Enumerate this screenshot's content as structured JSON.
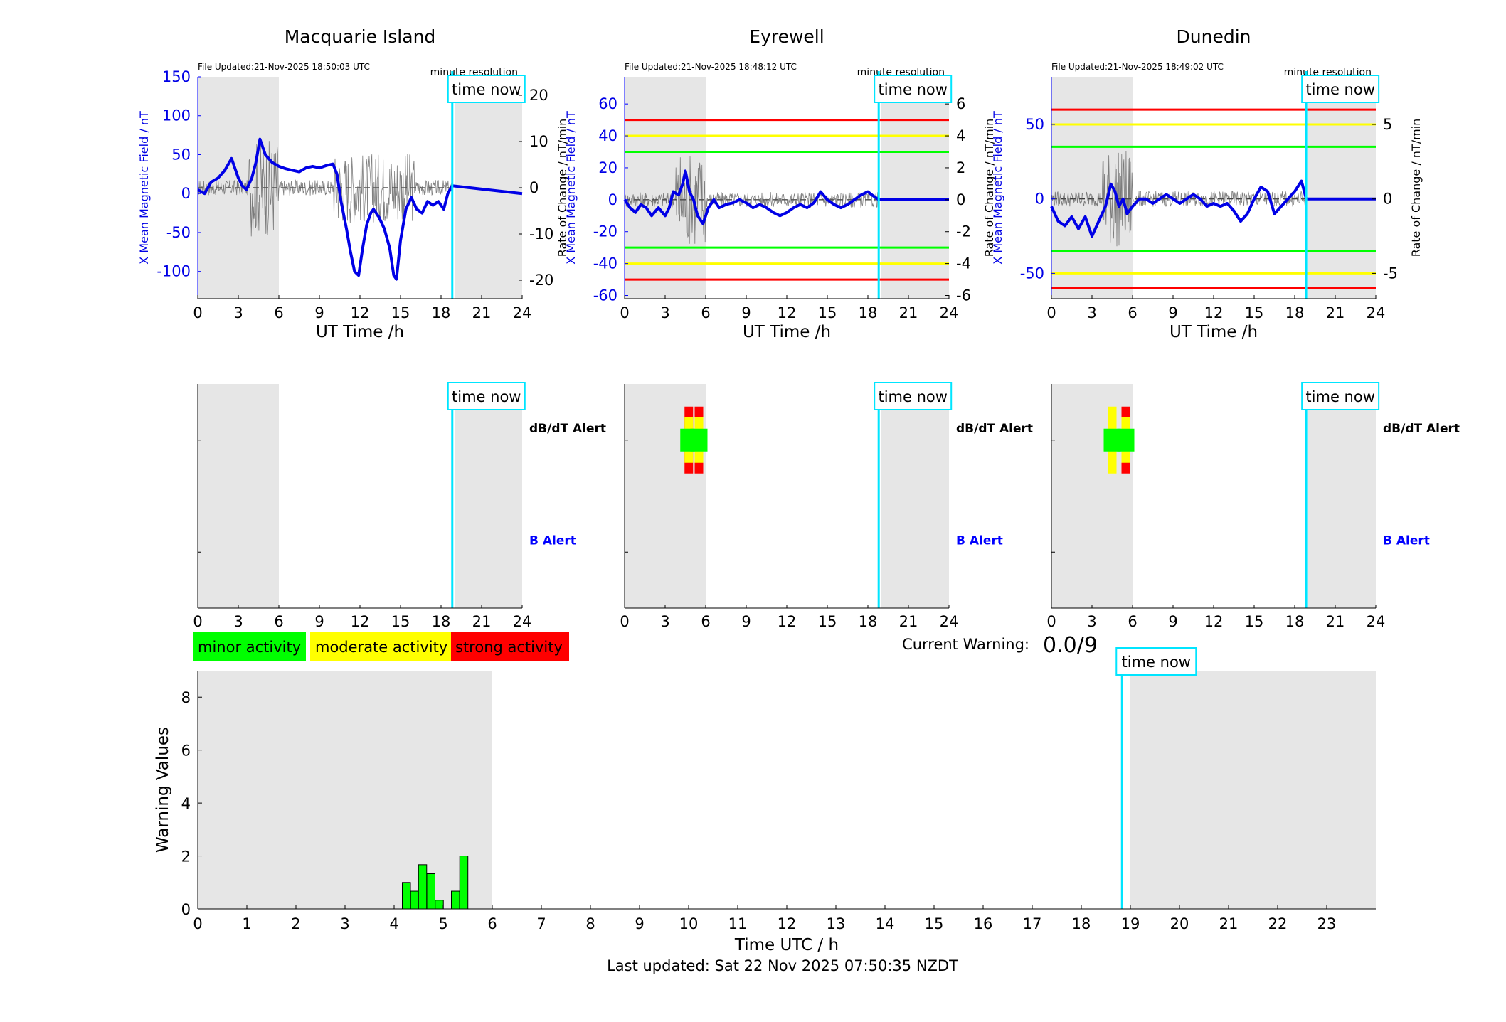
{
  "colors": {
    "night_shade": "#e6e6e6",
    "x_field": "#0000e6",
    "rate": "#555555",
    "time_now": "#00e5ff",
    "minor": "#00ff00",
    "moderate": "#ffff00",
    "strong": "#ff0000",
    "b_alert_label": "#0000ff"
  },
  "time_now_label": "time now",
  "minute_resolution": "minute resolution",
  "stations": [
    {
      "name": "Macquarie Island",
      "file_updated": "File Updated:21-Nov-2025 18:50:03 UTC",
      "xlabel": "UT Time /h",
      "ylabel_left": "X Mean Magnetic Field / nT",
      "ylabel_right": "Rate of Change / nT/min",
      "x_ticks": [
        "0",
        "3",
        "6",
        "9",
        "12",
        "15",
        "18",
        "21",
        "24"
      ],
      "ylim_left": [
        -135,
        150
      ],
      "yticks_left": [
        "150",
        "100",
        "50",
        "0",
        "-50",
        "-100"
      ],
      "ylim_right": [
        -24,
        24
      ],
      "yticks_right": [
        "20",
        "10",
        "0",
        "-10",
        "-20"
      ],
      "threshold_lines": [],
      "night_shade_hours": [
        [
          0,
          6
        ],
        [
          19,
          24
        ]
      ],
      "time_now_hour": 18.83,
      "x_field_series": [
        [
          0,
          5
        ],
        [
          0.5,
          0
        ],
        [
          1,
          15
        ],
        [
          1.5,
          20
        ],
        [
          2,
          30
        ],
        [
          2.5,
          45
        ],
        [
          3,
          20
        ],
        [
          3.3,
          10
        ],
        [
          3.6,
          5
        ],
        [
          4,
          20
        ],
        [
          4.3,
          40
        ],
        [
          4.6,
          70
        ],
        [
          5,
          50
        ],
        [
          5.5,
          40
        ],
        [
          6,
          35
        ],
        [
          6.5,
          32
        ],
        [
          7,
          30
        ],
        [
          7.5,
          28
        ],
        [
          8,
          33
        ],
        [
          8.5,
          35
        ],
        [
          9,
          33
        ],
        [
          9.5,
          36
        ],
        [
          10,
          38
        ],
        [
          10.3,
          25
        ],
        [
          10.6,
          -10
        ],
        [
          11,
          -45
        ],
        [
          11.3,
          -75
        ],
        [
          11.6,
          -100
        ],
        [
          11.9,
          -105
        ],
        [
          12.2,
          -70
        ],
        [
          12.5,
          -40
        ],
        [
          12.8,
          -25
        ],
        [
          13,
          -20
        ],
        [
          13.4,
          -30
        ],
        [
          13.8,
          -45
        ],
        [
          14.2,
          -70
        ],
        [
          14.5,
          -105
        ],
        [
          14.7,
          -110
        ],
        [
          15,
          -60
        ],
        [
          15.4,
          -20
        ],
        [
          15.8,
          -5
        ],
        [
          16.2,
          -20
        ],
        [
          16.6,
          -25
        ],
        [
          17,
          -10
        ],
        [
          17.4,
          -15
        ],
        [
          17.8,
          -10
        ],
        [
          18.2,
          -20
        ],
        [
          18.5,
          0
        ],
        [
          18.83,
          10
        ],
        [
          24,
          0
        ]
      ],
      "rate_baseline_hour_end": 18.83
    },
    {
      "name": "Eyrewell",
      "file_updated": "File Updated:21-Nov-2025 18:48:12 UTC",
      "xlabel": "UT Time /h",
      "ylabel_left": "X Mean Magnetic Field / nT",
      "ylabel_right": "Rate of Change / nT/min",
      "x_ticks": [
        "0",
        "3",
        "6",
        "9",
        "12",
        "15",
        "18",
        "21",
        "24"
      ],
      "ylim_left": [
        -62,
        77
      ],
      "yticks_left": [
        "60",
        "40",
        "20",
        "0",
        "-20",
        "-40",
        "-60"
      ],
      "ylim_right": [
        -6.2,
        7.7
      ],
      "yticks_right": [
        "6",
        "4",
        "2",
        "0",
        "-2",
        "-4",
        "-6"
      ],
      "threshold_lines": [
        {
          "value": 50,
          "color": "#ff0000"
        },
        {
          "value": 40,
          "color": "#ffff00"
        },
        {
          "value": 30,
          "color": "#00ff00"
        },
        {
          "value": -30,
          "color": "#00ff00"
        },
        {
          "value": -40,
          "color": "#ffff00"
        },
        {
          "value": -50,
          "color": "#ff0000"
        }
      ],
      "night_shade_hours": [
        [
          0,
          6
        ],
        [
          19,
          24
        ]
      ],
      "time_now_hour": 18.8,
      "x_field_series": [
        [
          0,
          0
        ],
        [
          0.4,
          -5
        ],
        [
          0.8,
          -8
        ],
        [
          1.2,
          -3
        ],
        [
          1.6,
          -5
        ],
        [
          2,
          -10
        ],
        [
          2.5,
          -5
        ],
        [
          3,
          -10
        ],
        [
          3.3,
          -5
        ],
        [
          3.6,
          5
        ],
        [
          4,
          3
        ],
        [
          4.3,
          10
        ],
        [
          4.5,
          18
        ],
        [
          4.8,
          5
        ],
        [
          5.1,
          0
        ],
        [
          5.4,
          -10
        ],
        [
          5.8,
          -15
        ],
        [
          6.2,
          -5
        ],
        [
          6.6,
          0
        ],
        [
          7,
          -5
        ],
        [
          7.5,
          -3
        ],
        [
          8,
          -2
        ],
        [
          8.5,
          0
        ],
        [
          9,
          -2
        ],
        [
          9.5,
          -5
        ],
        [
          10,
          -3
        ],
        [
          10.5,
          -5
        ],
        [
          11,
          -8
        ],
        [
          11.5,
          -10
        ],
        [
          12,
          -8
        ],
        [
          12.5,
          -5
        ],
        [
          13,
          -3
        ],
        [
          13.5,
          -5
        ],
        [
          14,
          -2
        ],
        [
          14.5,
          5
        ],
        [
          15,
          0
        ],
        [
          15.5,
          -3
        ],
        [
          16,
          -5
        ],
        [
          16.5,
          -3
        ],
        [
          17,
          0
        ],
        [
          17.5,
          3
        ],
        [
          18,
          5
        ],
        [
          18.3,
          3
        ],
        [
          18.8,
          0
        ],
        [
          24,
          0
        ]
      ],
      "rate_baseline_hour_end": 18.8
    },
    {
      "name": "Dunedin",
      "file_updated": "File Updated:21-Nov-2025 18:49:02 UTC",
      "xlabel": "UT Time /h",
      "ylabel_left": "X Mean Magnetic Field / nT",
      "ylabel_right": "Rate of Change / nT/min",
      "x_ticks": [
        "0",
        "3",
        "6",
        "9",
        "12",
        "15",
        "18",
        "21",
        "24"
      ],
      "ylim_left": [
        -67,
        82
      ],
      "yticks_left": [
        "50",
        "0",
        "-50"
      ],
      "ylim_right": [
        -6.7,
        8.2
      ],
      "yticks_right": [
        "5",
        "0",
        "-5"
      ],
      "threshold_lines": [
        {
          "value": 60,
          "color": "#ff0000"
        },
        {
          "value": 50,
          "color": "#ffff00"
        },
        {
          "value": 35,
          "color": "#00ff00"
        },
        {
          "value": -35,
          "color": "#00ff00"
        },
        {
          "value": -50,
          "color": "#ffff00"
        },
        {
          "value": -60,
          "color": "#ff0000"
        }
      ],
      "night_shade_hours": [
        [
          0,
          6
        ],
        [
          19,
          24
        ]
      ],
      "time_now_hour": 18.85,
      "x_field_series": [
        [
          0,
          -5
        ],
        [
          0.5,
          -15
        ],
        [
          1,
          -18
        ],
        [
          1.5,
          -12
        ],
        [
          2,
          -20
        ],
        [
          2.5,
          -12
        ],
        [
          3,
          -25
        ],
        [
          3.5,
          -15
        ],
        [
          4,
          -5
        ],
        [
          4.4,
          10
        ],
        [
          4.7,
          5
        ],
        [
          5,
          -5
        ],
        [
          5.3,
          0
        ],
        [
          5.6,
          -10
        ],
        [
          6,
          -5
        ],
        [
          6.5,
          0
        ],
        [
          7,
          0
        ],
        [
          7.5,
          -3
        ],
        [
          8,
          0
        ],
        [
          8.5,
          3
        ],
        [
          9,
          0
        ],
        [
          9.5,
          -3
        ],
        [
          10,
          0
        ],
        [
          10.5,
          3
        ],
        [
          11,
          0
        ],
        [
          11.5,
          -5
        ],
        [
          12,
          -3
        ],
        [
          12.5,
          -5
        ],
        [
          13,
          -3
        ],
        [
          13.5,
          -8
        ],
        [
          14,
          -15
        ],
        [
          14.5,
          -10
        ],
        [
          15,
          0
        ],
        [
          15.5,
          8
        ],
        [
          16,
          5
        ],
        [
          16.5,
          -10
        ],
        [
          17,
          -5
        ],
        [
          17.5,
          0
        ],
        [
          18,
          5
        ],
        [
          18.5,
          12
        ],
        [
          18.85,
          0
        ],
        [
          24,
          0
        ]
      ],
      "rate_baseline_hour_end": 18.85
    }
  ],
  "alert_panels": [
    {
      "dbdt_label": "dB/dT Alert",
      "b_label": "B Alert",
      "x_ticks": [
        "0",
        "3",
        "6",
        "9",
        "12",
        "15",
        "18",
        "21",
        "24"
      ],
      "time_now_hour": 18.83,
      "dbdt_bars": []
    },
    {
      "dbdt_label": "dB/dT Alert",
      "b_label": "B Alert",
      "x_ticks": [
        "0",
        "3",
        "6",
        "9",
        "12",
        "15",
        "18",
        "21",
        "24"
      ],
      "time_now_hour": 18.8,
      "dbdt_bars": [
        {
          "hour": 4.75,
          "level": "strong"
        },
        {
          "hour": 5.5,
          "level": "strong"
        }
      ]
    },
    {
      "dbdt_label": "dB/dT Alert",
      "b_label": "B Alert",
      "x_ticks": [
        "0",
        "3",
        "6",
        "9",
        "12",
        "15",
        "18",
        "21",
        "24"
      ],
      "time_now_hour": 18.85,
      "dbdt_bars": [
        {
          "hour": 4.5,
          "level": "moderate"
        },
        {
          "hour": 5.5,
          "level": "strong"
        }
      ]
    }
  ],
  "legend": {
    "minor": "minor activity",
    "moderate": "moderate activity",
    "strong": "strong activity"
  },
  "current_warning": {
    "label": "Current Warning:",
    "value": "0.0/9"
  },
  "chart_data": {
    "type": "bar",
    "xlabel": "Time UTC / h",
    "ylabel": "Warning Values",
    "xlim": [
      0,
      24
    ],
    "ylim": [
      0,
      9
    ],
    "x_ticks": [
      "0",
      "1",
      "2",
      "3",
      "4",
      "5",
      "6",
      "7",
      "8",
      "9",
      "10",
      "11",
      "12",
      "13",
      "14",
      "15",
      "16",
      "17",
      "18",
      "19",
      "20",
      "21",
      "22",
      "23"
    ],
    "y_ticks": [
      "0",
      "2",
      "4",
      "6",
      "8"
    ],
    "time_now_hour": 18.83,
    "night_shade_hours": [
      [
        0,
        6
      ],
      [
        19,
        24
      ]
    ],
    "bars": [
      {
        "hour": 4.25,
        "value": 1.0
      },
      {
        "hour": 4.42,
        "value": 0.67
      },
      {
        "hour": 4.58,
        "value": 1.67
      },
      {
        "hour": 4.75,
        "value": 1.33
      },
      {
        "hour": 4.92,
        "value": 0.33
      },
      {
        "hour": 5.25,
        "value": 0.67
      },
      {
        "hour": 5.42,
        "value": 2.0
      }
    ]
  },
  "footer": "Last updated: Sat 22 Nov 2025 07:50:35 NZDT"
}
